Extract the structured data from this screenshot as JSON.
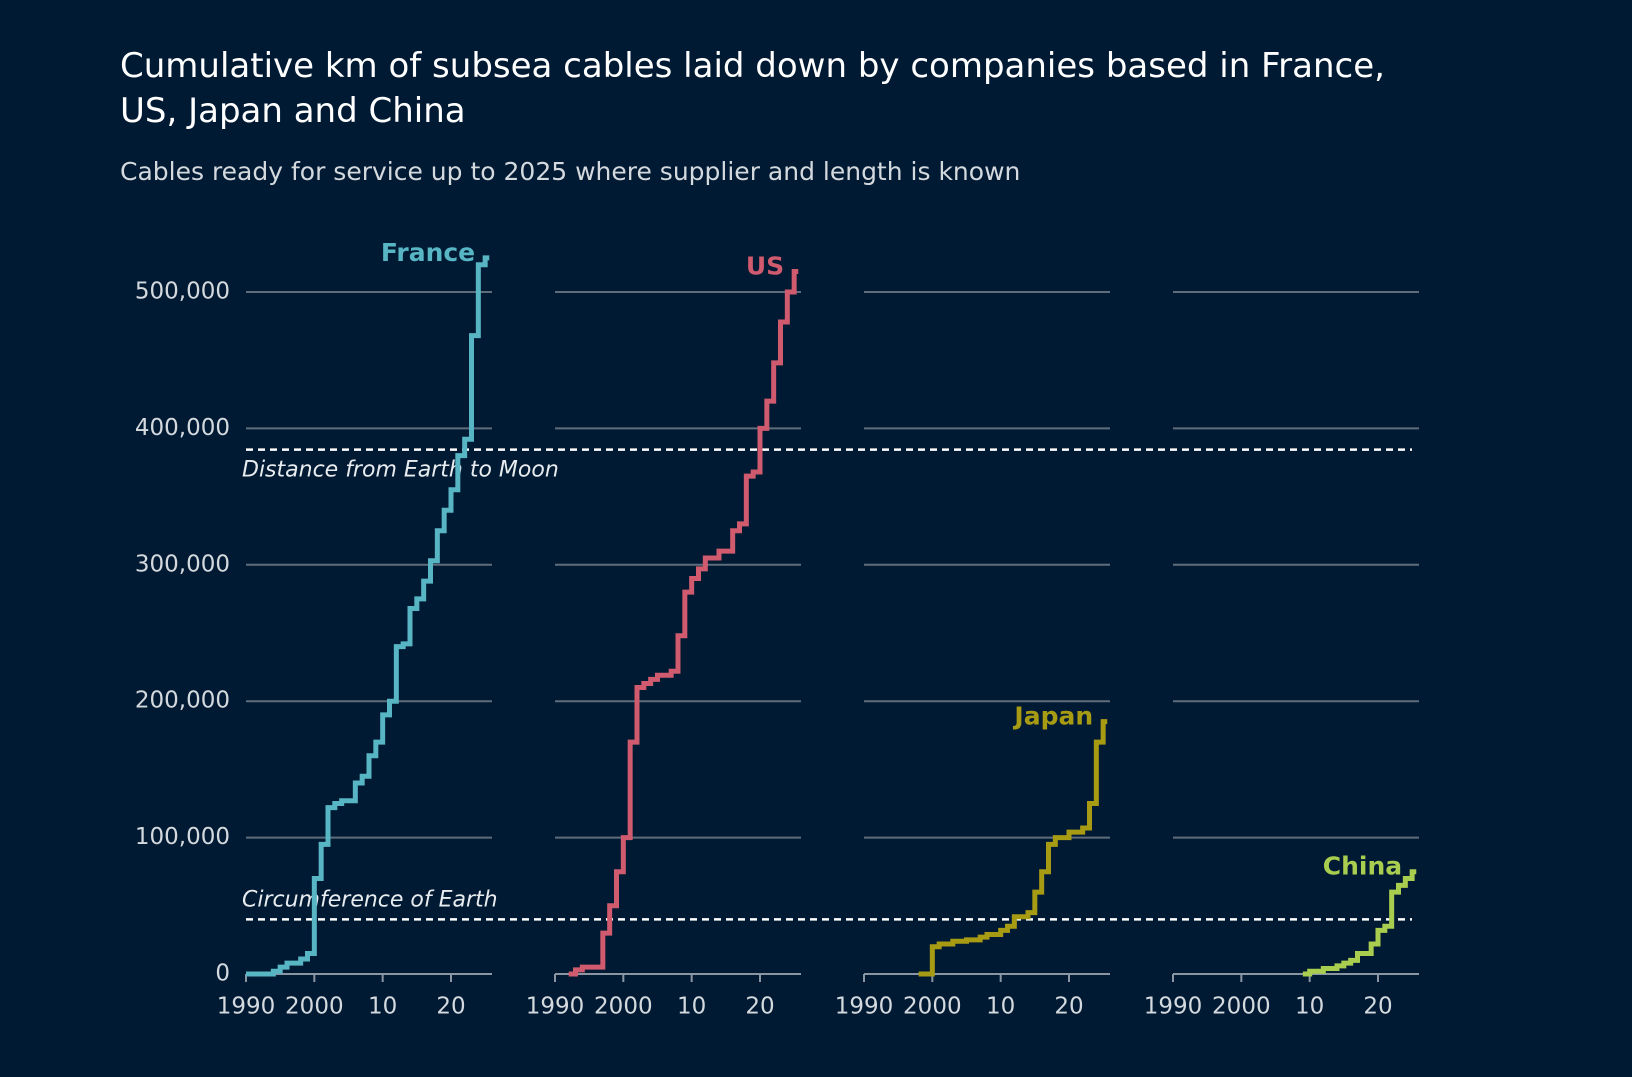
{
  "chart_data": {
    "type": "line",
    "step": true,
    "title": "Cumulative km of subsea cables laid down by companies based in France, US, Japan and China",
    "subtitle": "Cables ready for service up to 2025 where supplier and length is known",
    "xlim": [
      1990,
      2026
    ],
    "xticks": [
      1990,
      2000,
      {
        "value": 2010,
        "label": "10"
      },
      {
        "value": 2020,
        "label": "20"
      }
    ],
    "ylim": [
      0,
      500000
    ],
    "yticks": [
      0,
      {
        "value": 100000,
        "label": "100,000"
      },
      {
        "value": 200000,
        "label": "200,000"
      },
      {
        "value": 300000,
        "label": "300,000"
      },
      {
        "value": 400000,
        "label": "400,000"
      },
      {
        "value": 500000,
        "label": "500,000"
      }
    ],
    "grid": true,
    "reference_lines": [
      {
        "label": "Distance from Earth to Moon",
        "value": 384400
      },
      {
        "label": "Circumference of Earth",
        "value": 40075
      }
    ],
    "series": [
      {
        "name": "France",
        "color": "#57b5c4",
        "x": [
          1990,
          1994,
          1995,
          1996,
          1998,
          1999,
          2000,
          2001,
          2002,
          2003,
          2004,
          2006,
          2007,
          2008,
          2009,
          2010,
          2011,
          2012,
          2013,
          2014,
          2015,
          2016,
          2017,
          2018,
          2019,
          2020,
          2021,
          2022,
          2023,
          2024,
          2025
        ],
        "values": [
          0,
          2000,
          5000,
          8000,
          11000,
          15000,
          70000,
          95000,
          122000,
          125000,
          127000,
          140000,
          145000,
          160000,
          170000,
          190000,
          200000,
          240000,
          242000,
          268000,
          275000,
          288000,
          303000,
          325000,
          340000,
          355000,
          380000,
          392000,
          468000,
          520000,
          525000
        ]
      },
      {
        "name": "US",
        "color": "#d05a6e",
        "x": [
          1992,
          1993,
          1994,
          1997,
          1998,
          1999,
          2000,
          2001,
          2002,
          2003,
          2004,
          2005,
          2007,
          2008,
          2009,
          2010,
          2011,
          2012,
          2014,
          2016,
          2017,
          2018,
          2019,
          2020,
          2021,
          2022,
          2023,
          2024,
          2025
        ],
        "values": [
          0,
          3000,
          5000,
          30000,
          50000,
          75000,
          100000,
          170000,
          210000,
          213000,
          216000,
          219000,
          222000,
          248000,
          280000,
          290000,
          297000,
          305000,
          310000,
          325000,
          330000,
          365000,
          368000,
          400000,
          420000,
          448000,
          478000,
          500000,
          515000
        ]
      },
      {
        "name": "Japan",
        "color": "#a89b14",
        "x": [
          1998,
          2000,
          2001,
          2003,
          2005,
          2007,
          2008,
          2010,
          2011,
          2012,
          2014,
          2015,
          2016,
          2017,
          2018,
          2020,
          2022,
          2023,
          2024,
          2025
        ],
        "values": [
          0,
          20000,
          22000,
          24000,
          25000,
          27000,
          29000,
          32000,
          35000,
          42000,
          45000,
          60000,
          75000,
          95000,
          100000,
          104000,
          107000,
          125000,
          170000,
          185000
        ]
      },
      {
        "name": "China",
        "color": "#a9cd4f",
        "x": [
          2009,
          2010,
          2012,
          2014,
          2015,
          2016,
          2017,
          2019,
          2020,
          2021,
          2022,
          2023,
          2024,
          2025
        ],
        "values": [
          0,
          2000,
          4000,
          6000,
          8000,
          10000,
          15000,
          22000,
          32000,
          35000,
          60000,
          65000,
          70000,
          75000
        ]
      }
    ]
  }
}
